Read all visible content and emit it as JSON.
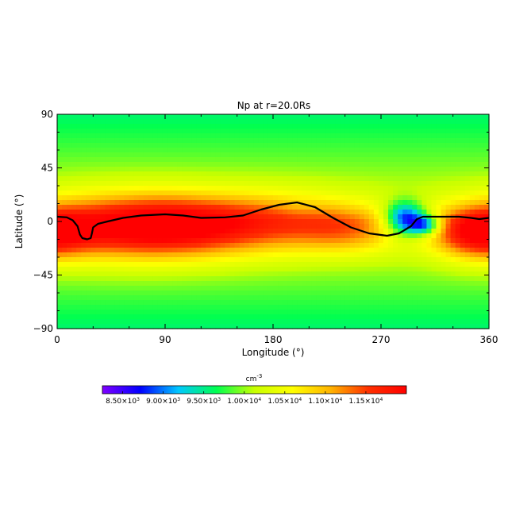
{
  "chart_data": {
    "type": "heatmap",
    "title": "Np at r=20.0Rs",
    "xlabel": "Longitude (°)",
    "ylabel": "Latitude (°)",
    "xlim": [
      0,
      360
    ],
    "ylim": [
      -90,
      90
    ],
    "x_ticks": [
      "0",
      "90",
      "180",
      "270",
      "360"
    ],
    "x_tick_values": [
      0,
      90,
      180,
      270,
      360
    ],
    "y_ticks": [
      "90",
      "45",
      "0",
      "-45",
      "-90"
    ],
    "y_tick_values": [
      90,
      45,
      0,
      -45,
      -90
    ],
    "colorbar": {
      "unit_base": "cm",
      "unit_exp": "-3",
      "range": [
        8250.0,
        12000.0
      ],
      "tick_values": [
        8500,
        9000,
        9500,
        10000,
        10500,
        11000,
        11500
      ],
      "tick_labels": [
        {
          "mant": "8.50",
          "exp": "3"
        },
        {
          "mant": "9.00",
          "exp": "3"
        },
        {
          "mant": "9.50",
          "exp": "3"
        },
        {
          "mant": "1.00",
          "exp": "4"
        },
        {
          "mant": "1.05",
          "exp": "4"
        },
        {
          "mant": "1.10",
          "exp": "4"
        },
        {
          "mant": "1.15",
          "exp": "4"
        }
      ],
      "colormap": [
        "#7f00ff",
        "#0000ff",
        "#00c8ff",
        "#00ff50",
        "#c8ff00",
        "#ffff00",
        "#ffb400",
        "#ff3000",
        "#ff0000"
      ]
    },
    "background_value": 10300,
    "features": [
      {
        "kind": "high",
        "lon": 60,
        "lat": -5,
        "value": 11700,
        "lon_width": 60,
        "lat_width": 20
      },
      {
        "kind": "high",
        "lon": 120,
        "lat": -3,
        "value": 11350,
        "lon_width": 60,
        "lat_width": 18
      },
      {
        "kind": "high",
        "lon": 200,
        "lat": 0,
        "value": 10900,
        "lon_width": 45,
        "lat_width": 18
      },
      {
        "kind": "high",
        "lon": 245,
        "lat": -8,
        "value": 11000,
        "lon_width": 30,
        "lat_width": 14
      },
      {
        "kind": "high",
        "lon": 350,
        "lat": -10,
        "value": 11650,
        "lon_width": 25,
        "lat_width": 15
      },
      {
        "kind": "low",
        "lon": 290,
        "lat": 2,
        "value": 8500,
        "lon_width": 12,
        "lat_width": 10
      },
      {
        "kind": "low",
        "lon": 307,
        "lat": -3,
        "value": 8900,
        "lon_width": 9,
        "lat_width": 6
      },
      {
        "kind": "low",
        "lon": 200,
        "lat": 12,
        "value": 10200,
        "lon_width": 12,
        "lat_width": 6
      }
    ],
    "neutral_line": [
      [
        0,
        4
      ],
      [
        8,
        3.5
      ],
      [
        13,
        1
      ],
      [
        17,
        -4
      ],
      [
        19,
        -11
      ],
      [
        21,
        -14
      ],
      [
        25,
        -15
      ],
      [
        28,
        -14
      ],
      [
        29,
        -10
      ],
      [
        30,
        -5
      ],
      [
        34,
        -2
      ],
      [
        42,
        0
      ],
      [
        55,
        3
      ],
      [
        70,
        5
      ],
      [
        90,
        6
      ],
      [
        105,
        5
      ],
      [
        120,
        3
      ],
      [
        140,
        3.5
      ],
      [
        155,
        5
      ],
      [
        170,
        10
      ],
      [
        185,
        14
      ],
      [
        200,
        16
      ],
      [
        215,
        12
      ],
      [
        230,
        3
      ],
      [
        245,
        -5
      ],
      [
        260,
        -10
      ],
      [
        275,
        -12
      ],
      [
        285,
        -10
      ],
      [
        295,
        -4
      ],
      [
        300,
        2
      ],
      [
        305,
        4
      ],
      [
        320,
        4
      ],
      [
        335,
        4
      ],
      [
        345,
        3
      ],
      [
        352,
        2
      ],
      [
        360,
        3
      ]
    ]
  }
}
